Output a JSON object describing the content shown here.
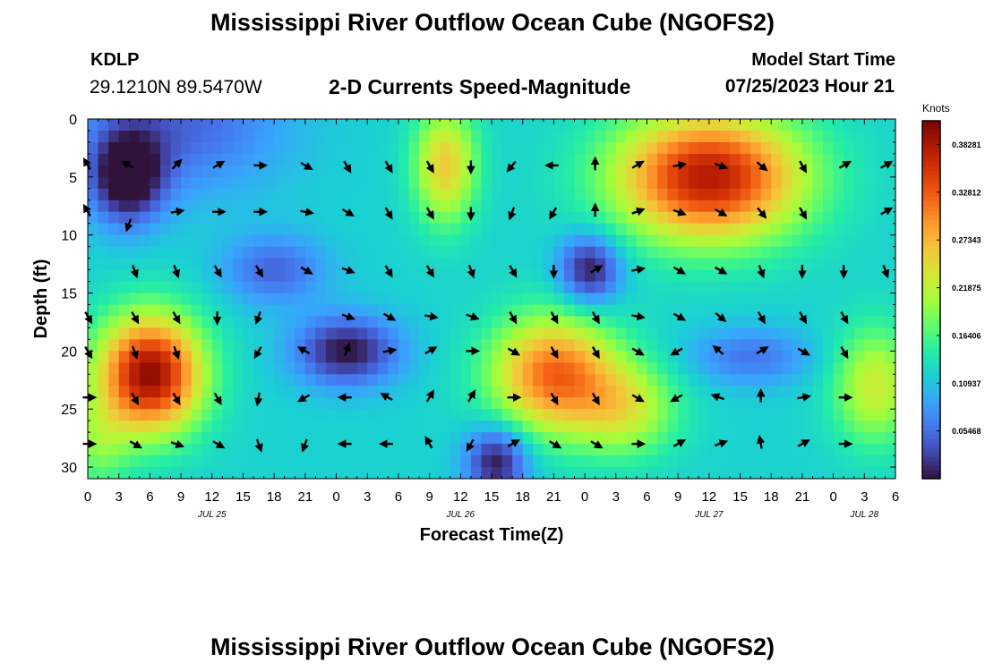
{
  "page": {
    "title": "Mississippi River Outflow Ocean Cube (NGOFS2)",
    "title_repeat": "Mississippi River Outflow Ocean Cube (NGOFS2)",
    "station_id": "KDLP",
    "station_coords": "29.1210N  89.5470W",
    "subtitle": "2-D Currents Speed-Magnitude",
    "model_start_label": "Model Start Time",
    "model_start_value": "07/25/2023 Hour 21"
  },
  "colors": {
    "scale": [
      "#30123b",
      "#4145ab",
      "#4675ed",
      "#39a2fc",
      "#1bcfd4",
      "#24eca6",
      "#61fc6c",
      "#a4fc3b",
      "#d1e834",
      "#f3c63a",
      "#fe9b2d",
      "#f36315",
      "#d93806",
      "#b11901",
      "#7a0402"
    ]
  },
  "chart_data": {
    "type": "heatmap",
    "title": "2-D Currents Speed-Magnitude",
    "xlabel": "Forecast Time(Z)",
    "ylabel": "Depth (ft)",
    "x_range_hours": [
      0,
      78
    ],
    "y_range_ft": [
      0,
      31
    ],
    "x_ticks": [
      {
        "h": 0,
        "label": "0"
      },
      {
        "h": 3,
        "label": "3"
      },
      {
        "h": 6,
        "label": "6"
      },
      {
        "h": 9,
        "label": "9"
      },
      {
        "h": 12,
        "label": "12"
      },
      {
        "h": 15,
        "label": "15"
      },
      {
        "h": 18,
        "label": "18"
      },
      {
        "h": 21,
        "label": "21"
      },
      {
        "h": 24,
        "label": "0"
      },
      {
        "h": 27,
        "label": "3"
      },
      {
        "h": 30,
        "label": "6"
      },
      {
        "h": 33,
        "label": "9"
      },
      {
        "h": 36,
        "label": "12"
      },
      {
        "h": 39,
        "label": "15"
      },
      {
        "h": 42,
        "label": "18"
      },
      {
        "h": 45,
        "label": "21"
      },
      {
        "h": 48,
        "label": "0"
      },
      {
        "h": 51,
        "label": "3"
      },
      {
        "h": 54,
        "label": "6"
      },
      {
        "h": 57,
        "label": "9"
      },
      {
        "h": 60,
        "label": "12"
      },
      {
        "h": 63,
        "label": "15"
      },
      {
        "h": 66,
        "label": "18"
      },
      {
        "h": 69,
        "label": "21"
      },
      {
        "h": 72,
        "label": "0"
      },
      {
        "h": 75,
        "label": "3"
      },
      {
        "h": 78,
        "label": "6"
      }
    ],
    "date_labels": [
      {
        "h": 12,
        "label": "JUL 25"
      },
      {
        "h": 36,
        "label": "JUL 26"
      },
      {
        "h": 60,
        "label": "JUL 27"
      },
      {
        "h": 75,
        "label": "JUL 28"
      }
    ],
    "y_ticks": [
      0,
      5,
      10,
      15,
      20,
      25,
      30
    ],
    "colorbar": {
      "unit": "Knots",
      "range": [
        0,
        0.41
      ],
      "ticks": [
        "0.05468",
        "0.10937",
        "0.16406",
        "0.21875",
        "0.27343",
        "0.32812",
        "0.38281"
      ]
    },
    "speed_blobs": [
      {
        "h": 3.8,
        "d": 5,
        "sh": 3.5,
        "sd": 4,
        "amp": -0.14
      },
      {
        "h": 9,
        "d": 0.5,
        "sh": 10,
        "sd": 6,
        "amp": -0.07
      },
      {
        "h": 6,
        "d": 22,
        "sh": 5,
        "sd": 5,
        "amp": 0.28
      },
      {
        "h": 1,
        "d": 28,
        "sh": 3,
        "sd": 4,
        "amp": 0.06
      },
      {
        "h": 18,
        "d": 13,
        "sh": 5,
        "sd": 3,
        "amp": -0.07
      },
      {
        "h": 25,
        "d": 20,
        "sh": 5,
        "sd": 3,
        "amp": -0.12
      },
      {
        "h": 34.5,
        "d": 4,
        "sh": 3,
        "sd": 5,
        "amp": 0.14
      },
      {
        "h": 39.5,
        "d": 29.5,
        "sh": 3,
        "sd": 3,
        "amp": -0.12
      },
      {
        "h": 45,
        "d": 22,
        "sh": 6,
        "sd": 5,
        "amp": 0.2
      },
      {
        "h": 52,
        "d": 25,
        "sh": 5,
        "sd": 4,
        "amp": 0.1
      },
      {
        "h": 48.5,
        "d": 13,
        "sh": 3,
        "sd": 3,
        "amp": -0.12
      },
      {
        "h": 60,
        "d": 5,
        "sh": 9,
        "sd": 5.5,
        "amp": 0.26
      },
      {
        "h": 64,
        "d": 20.5,
        "sh": 6,
        "sd": 2.5,
        "amp": -0.06
      },
      {
        "h": 76,
        "d": 23,
        "sh": 4,
        "sd": 5,
        "amp": 0.11
      }
    ],
    "speed_base": 0.12,
    "arrows": [
      {
        "h": 0,
        "d": 4,
        "a": 330
      },
      {
        "h": 0,
        "d": 8,
        "a": 330
      },
      {
        "h": 0,
        "d": 17,
        "a": 150
      },
      {
        "h": 0,
        "d": 20,
        "a": 150
      },
      {
        "h": 0,
        "d": 24,
        "a": 90
      },
      {
        "h": 0,
        "d": 28,
        "a": 90
      },
      {
        "h": 4,
        "d": 4,
        "a": 300
      },
      {
        "h": 4,
        "d": 9,
        "a": 200
      },
      {
        "h": 4.5,
        "d": 13,
        "a": 160
      },
      {
        "h": 4.5,
        "d": 17,
        "a": 150
      },
      {
        "h": 4.5,
        "d": 20,
        "a": 160
      },
      {
        "h": 4.5,
        "d": 24,
        "a": 150
      },
      {
        "h": 4.5,
        "d": 28,
        "a": 120
      },
      {
        "h": 8.5,
        "d": 4,
        "a": 45
      },
      {
        "h": 8.5,
        "d": 8,
        "a": 80
      },
      {
        "h": 8.5,
        "d": 13,
        "a": 160
      },
      {
        "h": 8.5,
        "d": 17,
        "a": 150
      },
      {
        "h": 8.5,
        "d": 20,
        "a": 160
      },
      {
        "h": 8.5,
        "d": 24,
        "a": 150
      },
      {
        "h": 8.5,
        "d": 28,
        "a": 110
      },
      {
        "h": 12.5,
        "d": 4,
        "a": 60
      },
      {
        "h": 12.5,
        "d": 8,
        "a": 90
      },
      {
        "h": 12.5,
        "d": 13,
        "a": 150
      },
      {
        "h": 12.5,
        "d": 17,
        "a": 180
      },
      {
        "h": 12.5,
        "d": 24,
        "a": 150
      },
      {
        "h": 12.5,
        "d": 28,
        "a": 120
      },
      {
        "h": 16.5,
        "d": 4,
        "a": 90
      },
      {
        "h": 16.5,
        "d": 8,
        "a": 90
      },
      {
        "h": 16.5,
        "d": 13,
        "a": 150
      },
      {
        "h": 16.5,
        "d": 17,
        "a": 200
      },
      {
        "h": 16.5,
        "d": 20,
        "a": 210
      },
      {
        "h": 16.5,
        "d": 24,
        "a": 190
      },
      {
        "h": 16.5,
        "d": 28,
        "a": 160
      },
      {
        "h": 21,
        "d": 4,
        "a": 120
      },
      {
        "h": 21,
        "d": 8,
        "a": 100
      },
      {
        "h": 21,
        "d": 13,
        "a": 120
      },
      {
        "h": 21,
        "d": 20,
        "a": 300
      },
      {
        "h": 21,
        "d": 24,
        "a": 240
      },
      {
        "h": 21,
        "d": 28,
        "a": 200
      },
      {
        "h": 25,
        "d": 4,
        "a": 150
      },
      {
        "h": 25,
        "d": 8,
        "a": 120
      },
      {
        "h": 25,
        "d": 13,
        "a": 110
      },
      {
        "h": 25,
        "d": 17,
        "a": 110
      },
      {
        "h": 25,
        "d": 20,
        "a": 20
      },
      {
        "h": 25,
        "d": 24,
        "a": 270
      },
      {
        "h": 25,
        "d": 28,
        "a": 270
      },
      {
        "h": 29,
        "d": 4,
        "a": 150
      },
      {
        "h": 29,
        "d": 8,
        "a": 150
      },
      {
        "h": 29,
        "d": 13,
        "a": 150
      },
      {
        "h": 29,
        "d": 17,
        "a": 120
      },
      {
        "h": 29,
        "d": 20,
        "a": 80
      },
      {
        "h": 29,
        "d": 24,
        "a": 300
      },
      {
        "h": 29,
        "d": 28,
        "a": 270
      },
      {
        "h": 33,
        "d": 4,
        "a": 150
      },
      {
        "h": 33,
        "d": 8,
        "a": 150
      },
      {
        "h": 33,
        "d": 13,
        "a": 150
      },
      {
        "h": 33,
        "d": 17,
        "a": 100
      },
      {
        "h": 33,
        "d": 20,
        "a": 60
      },
      {
        "h": 33,
        "d": 24,
        "a": 30
      },
      {
        "h": 33,
        "d": 28,
        "a": 330
      },
      {
        "h": 37,
        "d": 4,
        "a": 180
      },
      {
        "h": 37,
        "d": 8,
        "a": 180
      },
      {
        "h": 37,
        "d": 13,
        "a": 160
      },
      {
        "h": 37,
        "d": 17,
        "a": 110
      },
      {
        "h": 37,
        "d": 20,
        "a": 90
      },
      {
        "h": 37,
        "d": 24,
        "a": 30
      },
      {
        "h": 37,
        "d": 28,
        "a": 210
      },
      {
        "h": 41,
        "d": 4,
        "a": 220
      },
      {
        "h": 41,
        "d": 8,
        "a": 200
      },
      {
        "h": 41,
        "d": 13,
        "a": 150
      },
      {
        "h": 41,
        "d": 17,
        "a": 150
      },
      {
        "h": 41,
        "d": 20,
        "a": 120
      },
      {
        "h": 41,
        "d": 24,
        "a": 90
      },
      {
        "h": 41,
        "d": 28,
        "a": 60
      },
      {
        "h": 45,
        "d": 4,
        "a": 270
      },
      {
        "h": 45,
        "d": 8,
        "a": 210
      },
      {
        "h": 45,
        "d": 13,
        "a": 180
      },
      {
        "h": 45,
        "d": 17,
        "a": 150
      },
      {
        "h": 45,
        "d": 20,
        "a": 150
      },
      {
        "h": 45,
        "d": 24,
        "a": 150
      },
      {
        "h": 45,
        "d": 28,
        "a": 120
      },
      {
        "h": 49,
        "d": 4,
        "a": 0
      },
      {
        "h": 49,
        "d": 8,
        "a": 0
      },
      {
        "h": 49,
        "d": 13,
        "a": 60
      },
      {
        "h": 49,
        "d": 17,
        "a": 150
      },
      {
        "h": 49,
        "d": 20,
        "a": 150
      },
      {
        "h": 49,
        "d": 24,
        "a": 150
      },
      {
        "h": 49,
        "d": 28,
        "a": 120
      },
      {
        "h": 53,
        "d": 4,
        "a": 60
      },
      {
        "h": 53,
        "d": 8,
        "a": 70
      },
      {
        "h": 53,
        "d": 13,
        "a": 80
      },
      {
        "h": 53,
        "d": 17,
        "a": 100
      },
      {
        "h": 53,
        "d": 20,
        "a": 120
      },
      {
        "h": 53,
        "d": 24,
        "a": 120
      },
      {
        "h": 53,
        "d": 28,
        "a": 90
      },
      {
        "h": 57,
        "d": 4,
        "a": 80
      },
      {
        "h": 57,
        "d": 8,
        "a": 110
      },
      {
        "h": 57,
        "d": 13,
        "a": 120
      },
      {
        "h": 57,
        "d": 17,
        "a": 120
      },
      {
        "h": 57,
        "d": 20,
        "a": 240
      },
      {
        "h": 57,
        "d": 24,
        "a": 240
      },
      {
        "h": 57,
        "d": 28,
        "a": 60
      },
      {
        "h": 61,
        "d": 4,
        "a": 110
      },
      {
        "h": 61,
        "d": 8,
        "a": 120
      },
      {
        "h": 61,
        "d": 13,
        "a": 120
      },
      {
        "h": 61,
        "d": 17,
        "a": 130
      },
      {
        "h": 61,
        "d": 20,
        "a": 310
      },
      {
        "h": 61,
        "d": 24,
        "a": 290
      },
      {
        "h": 61,
        "d": 28,
        "a": 70
      },
      {
        "h": 65,
        "d": 4,
        "a": 130
      },
      {
        "h": 65,
        "d": 8,
        "a": 140
      },
      {
        "h": 65,
        "d": 13,
        "a": 160
      },
      {
        "h": 65,
        "d": 17,
        "a": 150
      },
      {
        "h": 65,
        "d": 20,
        "a": 60
      },
      {
        "h": 65,
        "d": 24,
        "a": 0
      },
      {
        "h": 65,
        "d": 28,
        "a": 350
      },
      {
        "h": 69,
        "d": 4,
        "a": 150
      },
      {
        "h": 69,
        "d": 8,
        "a": 150
      },
      {
        "h": 69,
        "d": 13,
        "a": 180
      },
      {
        "h": 69,
        "d": 17,
        "a": 150
      },
      {
        "h": 69,
        "d": 20,
        "a": 120
      },
      {
        "h": 69,
        "d": 24,
        "a": 80
      },
      {
        "h": 69,
        "d": 28,
        "a": 60
      },
      {
        "h": 73,
        "d": 4,
        "a": 60
      },
      {
        "h": 73,
        "d": 13,
        "a": 180
      },
      {
        "h": 73,
        "d": 17,
        "a": 150
      },
      {
        "h": 73,
        "d": 20,
        "a": 150
      },
      {
        "h": 73,
        "d": 24,
        "a": 90
      },
      {
        "h": 73,
        "d": 28,
        "a": 90
      },
      {
        "h": 77,
        "d": 4,
        "a": 60
      },
      {
        "h": 77,
        "d": 8,
        "a": 60
      },
      {
        "h": 77,
        "d": 13,
        "a": 160
      }
    ]
  }
}
